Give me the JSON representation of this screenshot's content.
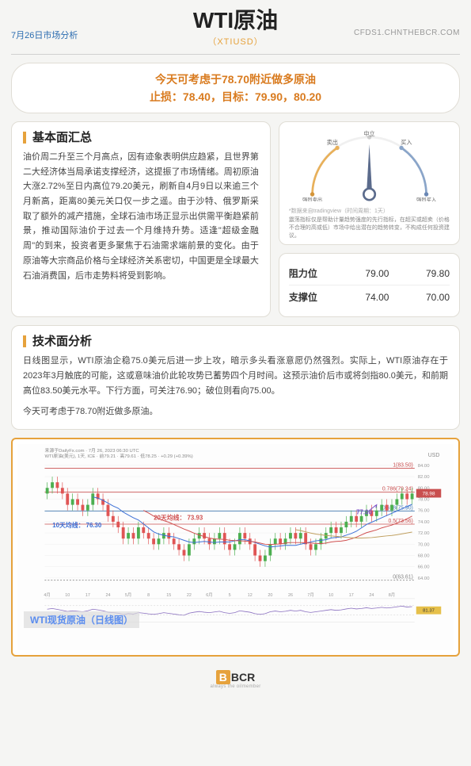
{
  "header": {
    "date_label": "7月26日市场分析",
    "title": "WTI原油",
    "subtitle": "（XTIUSD）",
    "site": "CFDS1.CHNTHEBCR.COM"
  },
  "signal": {
    "line1": "今天可考虑于78.70附近做多原油",
    "line2": "止损：78.40，目标：79.90，80.20"
  },
  "fundamental": {
    "title": "基本面汇总",
    "body": "油价周二升至三个月高点，因有迹象表明供应趋紧，且世界第二大经济体当局承诺支撑经济，这提振了市场情绪。周初原油大涨2.72%至日内高位79.20美元，刷新自4月9日以来逾三个月新高，距离80美元关口仅一步之遥。由于沙特、俄罗斯采取了额外的减产措施，全球石油市场正显示出供需平衡趋紧前景，推动国际油价于过去一个月维持升势。适逢\"超级金融周\"的到来，投资者更多聚焦于石油需求端前景的变化。由于原油等大宗商品价格与全球经济关系密切，中国更是全球最大石油消费国，后市走势料将受到影响。"
  },
  "gauge": {
    "labels": {
      "strong_sell": "强烈卖出",
      "sell": "卖出",
      "neutral": "中立",
      "buy": "买入",
      "strong_buy": "强烈买入"
    },
    "needle_angle": 0,
    "source": "*数据来自tradingview（时间周期：1天）",
    "note": "震荡指标仅是帮助计量趋势强度的先行指标，在超买或超卖（价格不合理的高或低）市场中给出潜在的趋势转变，不构成任何投资建议。",
    "colors": {
      "sell_zone": "#e8b05a",
      "buy_zone": "#8aa5c9",
      "arc_bg": "#f0f0f0",
      "needle": "#5b6b8c"
    }
  },
  "levels": {
    "resistance_label": "阻力位",
    "support_label": "支撑位",
    "resistance": [
      "79.00",
      "79.80"
    ],
    "support": [
      "74.00",
      "70.00"
    ]
  },
  "technical": {
    "title": "技术面分析",
    "body": "日线图显示，WTI原油企稳75.0美元后进一步上攻，暗示多头看涨意愿仍然强烈。实际上，WTI原油存在于2023年3月触底的可能，这或意味油价此轮攻势已蓄势四个月时间。这预示油价后市或将剑指80.0美元，和前期高位83.50美元水平。下行方面，可关注76.90；破位则看向75.00。",
    "body2": "今天可考虑于78.70附近做多原油。"
  },
  "chart": {
    "caption": "WTI现货原油（日线图）",
    "source_line": "来源于DailyFx.com · 7月 26, 2023 06:30 UTC",
    "info_line": "WTI原油(美元), 1天, ICE · 前79.21 · 高79.61 · 低78.25 · +0.29 (+0.39%)",
    "ma_labels": {
      "ma10": "10天均线： 76.30",
      "ma20": "20天均线： 73.93"
    },
    "fib_levels": [
      {
        "label": "1(83.50)",
        "y": 83.5,
        "color": "#c94f4f"
      },
      {
        "label": "0.786(79.24)",
        "y": 79.24,
        "color": "#c94f4f"
      },
      {
        "label": "0.618(75.90)",
        "y": 75.9,
        "color": "#4a7fb5"
      },
      {
        "label": "0.5(73.56)",
        "y": 73.56,
        "color": "#c94f4f"
      },
      {
        "label": "0(63.61)",
        "y": 63.61,
        "color": "#888888"
      }
    ],
    "support_arrow_label": "77.00",
    "y_axis": {
      "min": 62,
      "max": 85,
      "step": 2,
      "label": "USD"
    },
    "x_ticks": [
      "4月",
      "10",
      "17",
      "24",
      "5月",
      "8",
      "15",
      "22",
      "6月",
      "5",
      "12",
      "20",
      "26",
      "7月",
      "10",
      "17",
      "24",
      "8月"
    ],
    "price_box": {
      "value": "78.98",
      "bg": "#c94f4f"
    },
    "side_badge": {
      "value": "81.37",
      "bg": "#e6c04a"
    },
    "colors": {
      "grid": "#eeeeee",
      "candle_up": "#4caf50",
      "candle_down": "#e05555",
      "ma10": "#3b6fd6",
      "ma20": "#d05050",
      "ma_other": "#c0a060",
      "support_arrow": "#7b4fc9"
    },
    "candles": [
      {
        "o": 79,
        "c": 80,
        "h": 81,
        "l": 78
      },
      {
        "o": 80,
        "c": 81,
        "h": 82,
        "l": 79
      },
      {
        "o": 81,
        "c": 80,
        "h": 82,
        "l": 79
      },
      {
        "o": 80,
        "c": 79,
        "h": 81,
        "l": 78
      },
      {
        "o": 79,
        "c": 77,
        "h": 80,
        "l": 76
      },
      {
        "o": 77,
        "c": 78,
        "h": 79,
        "l": 76
      },
      {
        "o": 78,
        "c": 77,
        "h": 79,
        "l": 76
      },
      {
        "o": 77,
        "c": 76,
        "h": 78,
        "l": 75
      },
      {
        "o": 76,
        "c": 77,
        "h": 78,
        "l": 75
      },
      {
        "o": 77,
        "c": 79,
        "h": 80,
        "l": 76
      },
      {
        "o": 79,
        "c": 78,
        "h": 80,
        "l": 77
      },
      {
        "o": 78,
        "c": 77,
        "h": 79,
        "l": 76
      },
      {
        "o": 77,
        "c": 75,
        "h": 78,
        "l": 74
      },
      {
        "o": 75,
        "c": 74,
        "h": 76,
        "l": 73
      },
      {
        "o": 74,
        "c": 73,
        "h": 75,
        "l": 72
      },
      {
        "o": 73,
        "c": 71,
        "h": 74,
        "l": 70
      },
      {
        "o": 71,
        "c": 72,
        "h": 73,
        "l": 70
      },
      {
        "o": 72,
        "c": 71,
        "h": 73,
        "l": 70
      },
      {
        "o": 71,
        "c": 73,
        "h": 74,
        "l": 70
      },
      {
        "o": 73,
        "c": 72,
        "h": 74,
        "l": 71
      },
      {
        "o": 72,
        "c": 71,
        "h": 73,
        "l": 70
      },
      {
        "o": 71,
        "c": 70,
        "h": 72,
        "l": 69
      },
      {
        "o": 70,
        "c": 71,
        "h": 72,
        "l": 69
      },
      {
        "o": 71,
        "c": 72,
        "h": 73,
        "l": 70
      },
      {
        "o": 72,
        "c": 71,
        "h": 73,
        "l": 70
      },
      {
        "o": 71,
        "c": 70,
        "h": 72,
        "l": 69
      },
      {
        "o": 70,
        "c": 69,
        "h": 71,
        "l": 68
      },
      {
        "o": 69,
        "c": 68,
        "h": 70,
        "l": 67
      },
      {
        "o": 68,
        "c": 70,
        "h": 71,
        "l": 67
      },
      {
        "o": 70,
        "c": 71,
        "h": 72,
        "l": 69
      },
      {
        "o": 71,
        "c": 72,
        "h": 73,
        "l": 70
      },
      {
        "o": 72,
        "c": 71,
        "h": 73,
        "l": 70
      },
      {
        "o": 71,
        "c": 70,
        "h": 72,
        "l": 69
      },
      {
        "o": 70,
        "c": 71,
        "h": 72,
        "l": 69
      },
      {
        "o": 71,
        "c": 72,
        "h": 73,
        "l": 70
      },
      {
        "o": 72,
        "c": 70,
        "h": 73,
        "l": 69
      },
      {
        "o": 70,
        "c": 69,
        "h": 71,
        "l": 68
      },
      {
        "o": 69,
        "c": 70,
        "h": 71,
        "l": 68
      },
      {
        "o": 70,
        "c": 72,
        "h": 73,
        "l": 69
      },
      {
        "o": 72,
        "c": 71,
        "h": 73,
        "l": 70
      },
      {
        "o": 71,
        "c": 70,
        "h": 72,
        "l": 69
      },
      {
        "o": 70,
        "c": 68,
        "h": 71,
        "l": 67
      },
      {
        "o": 68,
        "c": 67,
        "h": 69,
        "l": 66
      },
      {
        "o": 67,
        "c": 68,
        "h": 69,
        "l": 66
      },
      {
        "o": 68,
        "c": 70,
        "h": 71,
        "l": 67
      },
      {
        "o": 70,
        "c": 71,
        "h": 72,
        "l": 69
      },
      {
        "o": 71,
        "c": 70,
        "h": 72,
        "l": 69
      },
      {
        "o": 70,
        "c": 71,
        "h": 72,
        "l": 69
      },
      {
        "o": 71,
        "c": 72,
        "h": 73,
        "l": 70
      },
      {
        "o": 72,
        "c": 71,
        "h": 73,
        "l": 70
      },
      {
        "o": 71,
        "c": 72,
        "h": 73,
        "l": 70
      },
      {
        "o": 72,
        "c": 70,
        "h": 73,
        "l": 69
      },
      {
        "o": 70,
        "c": 69,
        "h": 71,
        "l": 68
      },
      {
        "o": 69,
        "c": 70,
        "h": 71,
        "l": 68
      },
      {
        "o": 70,
        "c": 71,
        "h": 72,
        "l": 69
      },
      {
        "o": 71,
        "c": 72,
        "h": 73,
        "l": 70
      },
      {
        "o": 72,
        "c": 73,
        "h": 74,
        "l": 71
      },
      {
        "o": 73,
        "c": 72,
        "h": 74,
        "l": 71
      },
      {
        "o": 72,
        "c": 73,
        "h": 74,
        "l": 71
      },
      {
        "o": 73,
        "c": 74,
        "h": 75,
        "l": 72
      },
      {
        "o": 74,
        "c": 75,
        "h": 76,
        "l": 73
      },
      {
        "o": 75,
        "c": 74,
        "h": 76,
        "l": 73
      },
      {
        "o": 74,
        "c": 75,
        "h": 76,
        "l": 73
      },
      {
        "o": 75,
        "c": 76,
        "h": 77,
        "l": 74
      },
      {
        "o": 76,
        "c": 75,
        "h": 77,
        "l": 74
      },
      {
        "o": 75,
        "c": 76,
        "h": 77,
        "l": 74
      },
      {
        "o": 76,
        "c": 77,
        "h": 78,
        "l": 75
      },
      {
        "o": 77,
        "c": 76,
        "h": 78,
        "l": 75
      },
      {
        "o": 76,
        "c": 77,
        "h": 78,
        "l": 75
      },
      {
        "o": 77,
        "c": 78,
        "h": 79,
        "l": 76
      },
      {
        "o": 78,
        "c": 79,
        "h": 80,
        "l": 77
      },
      {
        "o": 79,
        "c": 78,
        "h": 80,
        "l": 77
      },
      {
        "o": 78,
        "c": 79,
        "h": 80,
        "l": 77
      }
    ],
    "rsi": [
      55,
      58,
      54,
      50,
      45,
      48,
      46,
      44,
      48,
      55,
      52,
      48,
      42,
      40,
      38,
      32,
      36,
      34,
      40,
      38,
      35,
      33,
      36,
      40,
      37,
      34,
      31,
      29,
      38,
      42,
      45,
      42,
      40,
      43,
      46,
      40,
      37,
      40,
      48,
      45,
      42,
      36,
      33,
      36,
      44,
      47,
      44,
      46,
      50,
      47,
      50,
      44,
      41,
      44,
      47,
      50,
      53,
      50,
      52,
      56,
      59,
      56,
      58,
      61,
      58,
      60,
      63,
      60,
      62,
      65,
      68,
      64,
      66
    ]
  },
  "footer": {
    "brand": "BCR",
    "tagline": "always the oilmember"
  }
}
